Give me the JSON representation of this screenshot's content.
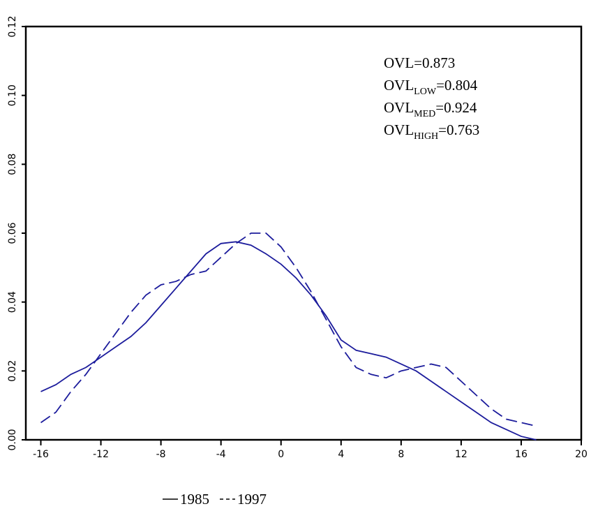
{
  "chart_data": {
    "type": "line",
    "x": [
      -16,
      -15,
      -14,
      -13,
      -12,
      -11,
      -10,
      -9,
      -8,
      -7,
      -6,
      -5,
      -4,
      -3,
      -2,
      -1,
      0,
      1,
      2,
      3,
      4,
      5,
      6,
      7,
      8,
      9,
      10,
      11,
      12,
      13,
      14,
      15,
      16,
      17
    ],
    "series": [
      {
        "name": "1985",
        "color": "#1c1c9c",
        "dash": "solid",
        "values": [
          0.014,
          0.016,
          0.019,
          0.021,
          0.024,
          0.027,
          0.03,
          0.034,
          0.039,
          0.044,
          0.049,
          0.054,
          0.057,
          0.0575,
          0.0565,
          0.054,
          0.051,
          0.047,
          0.042,
          0.036,
          0.029,
          0.026,
          0.025,
          0.024,
          0.022,
          0.02,
          0.017,
          0.014,
          0.011,
          0.008,
          0.005,
          0.003,
          0.001,
          0.0
        ]
      },
      {
        "name": "1997",
        "color": "#1c1c9c",
        "dash": "dashed",
        "values": [
          0.005,
          0.008,
          0.014,
          0.019,
          0.025,
          0.031,
          0.037,
          0.042,
          0.045,
          0.046,
          0.048,
          0.049,
          0.053,
          0.057,
          0.06,
          0.06,
          0.056,
          0.05,
          0.043,
          0.035,
          0.027,
          0.021,
          0.019,
          0.018,
          0.02,
          0.021,
          0.022,
          0.021,
          0.017,
          0.013,
          0.009,
          0.006,
          0.005,
          0.004
        ]
      }
    ],
    "xlim": [
      -17,
      20
    ],
    "xticks": [
      {
        "value": -16,
        "label": "-16"
      },
      {
        "value": -12,
        "label": "-12"
      },
      {
        "value": -8,
        "label": "-8"
      },
      {
        "value": -4,
        "label": "-4"
      },
      0,
      4,
      8,
      12,
      16,
      20
    ],
    "ylim": [
      0,
      0.12
    ],
    "yticks": [
      {
        "value": 0,
        "label": "0.00"
      },
      {
        "value": 0.02,
        "label": "0.02"
      },
      {
        "value": 0.04,
        "label": "0.04"
      },
      {
        "value": 0.06,
        "label": "0.06"
      },
      {
        "value": 0.08,
        "label": "0.08"
      },
      {
        "value": 0.1,
        "label": "0.10"
      },
      {
        "value": 0.12,
        "label": "0.12"
      }
    ],
    "annotations": [
      {
        "main": "OVL",
        "rest": "=0.873"
      },
      {
        "main": "OVL",
        "sub": "LOW",
        "rest": "=0.804"
      },
      {
        "main": "OVL",
        "sub": "MED",
        "rest": "=0.924"
      },
      {
        "main": "OVL",
        "sub": "HIGH",
        "rest": "=0.763"
      }
    ]
  }
}
